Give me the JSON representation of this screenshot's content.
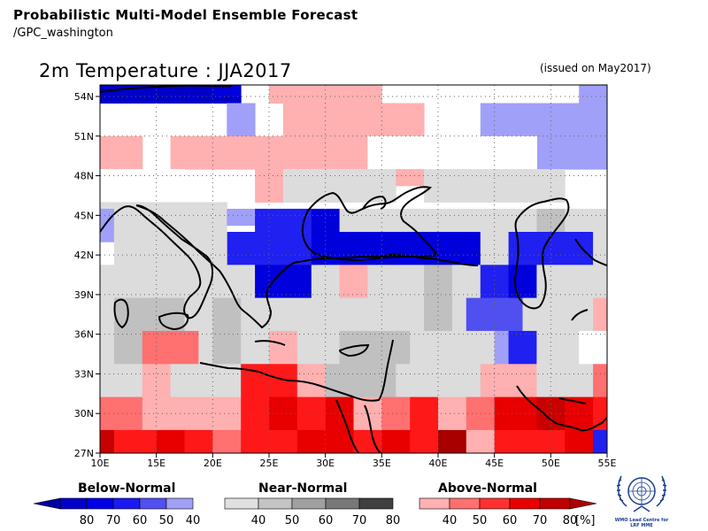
{
  "header": {
    "title": "Probabilistic Multi-Model Ensemble Forecast",
    "source": "/GPC_washington",
    "map_title": "2m Temperature : JJA2017",
    "issued": "(issued on May2017)"
  },
  "map": {
    "lon_labels": [
      "10E",
      "15E",
      "20E",
      "25E",
      "30E",
      "35E",
      "40E",
      "45E",
      "50E",
      "55E"
    ],
    "lat_labels": [
      "54N",
      "51N",
      "48N",
      "45N",
      "42N",
      "39N",
      "36N",
      "33N",
      "30N",
      "27N"
    ],
    "lon_range": [
      10,
      55
    ],
    "lat_range": [
      27,
      55.5
    ],
    "grid_dx": 2.5,
    "grid_dy": 2.5,
    "colors": {
      "blue": [
        "#0000c8",
        "#0000dc",
        "#2020f0",
        "#5050f0",
        "#a0a0f8"
      ],
      "grey": [
        "#dcdcdc",
        "#c0c0c0",
        "#909090"
      ],
      "red": [
        "#ffb0b0",
        "#ff7070",
        "#ff1818",
        "#e80000",
        "#c80000",
        "#a80000"
      ]
    },
    "cells": [
      {
        "lon": 10,
        "lat": 55,
        "w": 10,
        "h": 1,
        "c": "B0"
      },
      {
        "lon": 20,
        "lat": 55,
        "w": 2.5,
        "h": 1,
        "c": "B1"
      },
      {
        "lon": 25,
        "lat": 55,
        "w": 10,
        "h": 1,
        "c": "R0"
      },
      {
        "lon": 52.5,
        "lat": 55,
        "w": 2.5,
        "h": 1,
        "c": "B4"
      },
      {
        "lon": 10,
        "lat": 54,
        "w": 12.5,
        "h": 0.5,
        "c": "B0"
      },
      {
        "lon": 25,
        "lat": 54,
        "w": 10,
        "h": 0.5,
        "c": "R0"
      },
      {
        "lon": 52.5,
        "lat": 54,
        "w": 2.5,
        "h": 0.5,
        "c": "B4"
      },
      {
        "lon": 21.25,
        "lat": 53.5,
        "w": 2.5,
        "h": 2.5,
        "c": "B4"
      },
      {
        "lon": 26.25,
        "lat": 53.5,
        "w": 12.5,
        "h": 2.5,
        "c": "R0"
      },
      {
        "lon": 43.75,
        "lat": 53.5,
        "w": 11.25,
        "h": 2.5,
        "c": "B4"
      },
      {
        "lon": 10,
        "lat": 51,
        "w": 3.75,
        "h": 2.5,
        "c": "R0"
      },
      {
        "lon": 16.25,
        "lat": 51,
        "w": 17.5,
        "h": 2.5,
        "c": "R0"
      },
      {
        "lon": 48.75,
        "lat": 51,
        "w": 6.25,
        "h": 2.5,
        "c": "B4"
      },
      {
        "lon": 33.75,
        "lat": 51,
        "w": 15,
        "h": 2.5,
        "c": "G0z"
      },
      {
        "lon": 10,
        "lat": 48.5,
        "w": 7.5,
        "h": 2.5,
        "c": "G0z"
      },
      {
        "lon": 23.75,
        "lat": 48.5,
        "w": 2.5,
        "h": 2.5,
        "c": "R0"
      },
      {
        "lon": 26.25,
        "lat": 48.5,
        "w": 10,
        "h": 2.5,
        "c": "G0"
      },
      {
        "lon": 36.25,
        "lat": 48.5,
        "w": 2.5,
        "h": 1.25,
        "c": "R0"
      },
      {
        "lon": 38.75,
        "lat": 48.5,
        "w": 10,
        "h": 2.5,
        "c": "G0"
      },
      {
        "lon": 48.75,
        "lat": 48.5,
        "w": 2.5,
        "h": 2.5,
        "c": "G0"
      },
      {
        "lon": 10,
        "lat": 46,
        "w": 11.25,
        "h": 0.5,
        "c": "G0"
      },
      {
        "lon": 10,
        "lat": 45.5,
        "w": 1.25,
        "h": 2.5,
        "c": "B4"
      },
      {
        "lon": 11.25,
        "lat": 45.5,
        "w": 10,
        "h": 2.5,
        "c": "G0"
      },
      {
        "lon": 21.25,
        "lat": 45.5,
        "w": 2.5,
        "h": 1.25,
        "c": "B4"
      },
      {
        "lon": 23.75,
        "lat": 45.5,
        "w": 5,
        "h": 1.75,
        "c": "B2"
      },
      {
        "lon": 28.75,
        "lat": 45.5,
        "w": 2.5,
        "h": 1.75,
        "c": "B1"
      },
      {
        "lon": 31.25,
        "lat": 45.5,
        "w": 17.5,
        "h": 1.75,
        "c": "G0"
      },
      {
        "lon": 48.75,
        "lat": 45.5,
        "w": 2.5,
        "h": 1.75,
        "c": "G1"
      },
      {
        "lon": 51.25,
        "lat": 45.5,
        "w": 3.75,
        "h": 1.75,
        "c": "G0"
      },
      {
        "lon": 21.25,
        "lat": 43.75,
        "w": 2.5,
        "h": 2.5,
        "c": "B2"
      },
      {
        "lon": 23.75,
        "lat": 43.75,
        "w": 5,
        "h": 2.5,
        "c": "B2"
      },
      {
        "lon": 28.75,
        "lat": 43.75,
        "w": 2.5,
        "h": 2.5,
        "c": "B1"
      },
      {
        "lon": 31.25,
        "lat": 43.75,
        "w": 12.5,
        "h": 2.5,
        "c": "B1"
      },
      {
        "lon": 43.75,
        "lat": 43.75,
        "w": 2.5,
        "h": 2.5,
        "c": "G0"
      },
      {
        "lon": 46.25,
        "lat": 43.75,
        "w": 7.5,
        "h": 2.5,
        "c": "B2"
      },
      {
        "lon": 53.75,
        "lat": 43.75,
        "w": 1.25,
        "h": 2.5,
        "c": "G0"
      },
      {
        "lon": 11.25,
        "lat": 43.75,
        "w": 10,
        "h": 2.5,
        "c": "G0"
      },
      {
        "lon": 10,
        "lat": 41.25,
        "w": 13.75,
        "h": 2.5,
        "c": "G0"
      },
      {
        "lon": 23.75,
        "lat": 41.25,
        "w": 5,
        "h": 2.5,
        "c": "B1"
      },
      {
        "lon": 28.75,
        "lat": 41.25,
        "w": 2.5,
        "h": 2.5,
        "c": "G0"
      },
      {
        "lon": 31.25,
        "lat": 41.25,
        "w": 2.5,
        "h": 2.5,
        "c": "R0"
      },
      {
        "lon": 33.75,
        "lat": 41.25,
        "w": 5,
        "h": 2.5,
        "c": "G0"
      },
      {
        "lon": 38.75,
        "lat": 41.25,
        "w": 2.5,
        "h": 2.5,
        "c": "G1"
      },
      {
        "lon": 41.25,
        "lat": 41.25,
        "w": 2.5,
        "h": 2.5,
        "c": "G0"
      },
      {
        "lon": 43.75,
        "lat": 41.25,
        "w": 2.5,
        "h": 2.5,
        "c": "B2"
      },
      {
        "lon": 46.25,
        "lat": 41.25,
        "w": 2.5,
        "h": 2.5,
        "c": "B1"
      },
      {
        "lon": 48.75,
        "lat": 41.25,
        "w": 6.25,
        "h": 2.5,
        "c": "G0"
      },
      {
        "lon": 10,
        "lat": 38.75,
        "w": 1.25,
        "h": 2.5,
        "c": "G0"
      },
      {
        "lon": 11.25,
        "lat": 38.75,
        "w": 6.25,
        "h": 2.5,
        "c": "G1"
      },
      {
        "lon": 17.5,
        "lat": 38.75,
        "w": 2.5,
        "h": 2.5,
        "c": "G0"
      },
      {
        "lon": 20,
        "lat": 38.75,
        "w": 2.5,
        "h": 2.5,
        "c": "G1"
      },
      {
        "lon": 22.5,
        "lat": 38.75,
        "w": 16.25,
        "h": 2.5,
        "c": "G0"
      },
      {
        "lon": 38.75,
        "lat": 38.75,
        "w": 2.5,
        "h": 2.5,
        "c": "G1"
      },
      {
        "lon": 41.25,
        "lat": 38.75,
        "w": 1.25,
        "h": 2.5,
        "c": "G0"
      },
      {
        "lon": 42.5,
        "lat": 38.75,
        "w": 5,
        "h": 2.5,
        "c": "B3"
      },
      {
        "lon": 47.5,
        "lat": 38.75,
        "w": 6.25,
        "h": 2.5,
        "c": "G0"
      },
      {
        "lon": 53.75,
        "lat": 38.75,
        "w": 1.25,
        "h": 2.5,
        "c": "R0"
      },
      {
        "lon": 10,
        "lat": 36.25,
        "w": 1.25,
        "h": 2.5,
        "c": "G0"
      },
      {
        "lon": 11.25,
        "lat": 36.25,
        "w": 2.5,
        "h": 2.5,
        "c": "G1"
      },
      {
        "lon": 13.75,
        "lat": 36.25,
        "w": 5,
        "h": 2.5,
        "c": "R1"
      },
      {
        "lon": 18.75,
        "lat": 36.25,
        "w": 1.25,
        "h": 2.5,
        "c": "G0"
      },
      {
        "lon": 20,
        "lat": 36.25,
        "w": 2.5,
        "h": 2.5,
        "c": "G1"
      },
      {
        "lon": 22.5,
        "lat": 36.25,
        "w": 2.5,
        "h": 2.5,
        "c": "G0"
      },
      {
        "lon": 25,
        "lat": 36.25,
        "w": 2.5,
        "h": 2.5,
        "c": "R0"
      },
      {
        "lon": 27.5,
        "lat": 36.25,
        "w": 3.75,
        "h": 2.5,
        "c": "G0"
      },
      {
        "lon": 31.25,
        "lat": 36.25,
        "w": 6.25,
        "h": 2.5,
        "c": "G1"
      },
      {
        "lon": 37.5,
        "lat": 36.25,
        "w": 7.5,
        "h": 2.5,
        "c": "G0"
      },
      {
        "lon": 45,
        "lat": 36.25,
        "w": 1.25,
        "h": 2.5,
        "c": "B4"
      },
      {
        "lon": 46.25,
        "lat": 36.25,
        "w": 2.5,
        "h": 2.5,
        "c": "B2"
      },
      {
        "lon": 48.75,
        "lat": 36.25,
        "w": 3.75,
        "h": 2.5,
        "c": "G0"
      },
      {
        "lon": 52.5,
        "lat": 36.25,
        "w": 2.5,
        "h": 2.5,
        "c": "G0z"
      },
      {
        "lon": 10,
        "lat": 33.75,
        "w": 3.75,
        "h": 2.5,
        "c": "G0"
      },
      {
        "lon": 13.75,
        "lat": 33.75,
        "w": 2.5,
        "h": 2.5,
        "c": "R0"
      },
      {
        "lon": 16.25,
        "lat": 33.75,
        "w": 6.25,
        "h": 2.5,
        "c": "G0"
      },
      {
        "lon": 22.5,
        "lat": 33.75,
        "w": 5,
        "h": 2.5,
        "c": "R2"
      },
      {
        "lon": 27.5,
        "lat": 33.75,
        "w": 2.5,
        "h": 2.5,
        "c": "R0"
      },
      {
        "lon": 30,
        "lat": 33.75,
        "w": 6.25,
        "h": 2.5,
        "c": "G1"
      },
      {
        "lon": 36.25,
        "lat": 33.75,
        "w": 7.5,
        "h": 2.5,
        "c": "G0"
      },
      {
        "lon": 43.75,
        "lat": 33.75,
        "w": 5,
        "h": 2.5,
        "c": "R0"
      },
      {
        "lon": 48.75,
        "lat": 33.75,
        "w": 5,
        "h": 2.5,
        "c": "G0"
      },
      {
        "lon": 53.75,
        "lat": 33.75,
        "w": 1.25,
        "h": 2.5,
        "c": "R1"
      },
      {
        "lon": 10,
        "lat": 31.25,
        "w": 3.75,
        "h": 2.5,
        "c": "R1"
      },
      {
        "lon": 13.75,
        "lat": 31.25,
        "w": 8.75,
        "h": 2.5,
        "c": "R0"
      },
      {
        "lon": 22.5,
        "lat": 31.25,
        "w": 2.5,
        "h": 2.5,
        "c": "R2"
      },
      {
        "lon": 25,
        "lat": 31.25,
        "w": 2.5,
        "h": 2.5,
        "c": "R3"
      },
      {
        "lon": 27.5,
        "lat": 31.25,
        "w": 2.5,
        "h": 2.5,
        "c": "R2"
      },
      {
        "lon": 30,
        "lat": 31.25,
        "w": 2.5,
        "h": 2.5,
        "c": "R3"
      },
      {
        "lon": 32.5,
        "lat": 31.25,
        "w": 2.5,
        "h": 2.5,
        "c": "R0"
      },
      {
        "lon": 35,
        "lat": 31.25,
        "w": 2.5,
        "h": 2.5,
        "c": "R1"
      },
      {
        "lon": 37.5,
        "lat": 31.25,
        "w": 2.5,
        "h": 2.5,
        "c": "R2"
      },
      {
        "lon": 40,
        "lat": 31.25,
        "w": 2.5,
        "h": 2.5,
        "c": "R0"
      },
      {
        "lon": 42.5,
        "lat": 31.25,
        "w": 2.5,
        "h": 2.5,
        "c": "R1"
      },
      {
        "lon": 45,
        "lat": 31.25,
        "w": 3.75,
        "h": 2.5,
        "c": "R3"
      },
      {
        "lon": 48.75,
        "lat": 31.25,
        "w": 2.5,
        "h": 2.5,
        "c": "R4"
      },
      {
        "lon": 51.25,
        "lat": 31.25,
        "w": 2.5,
        "h": 2.5,
        "c": "R3"
      },
      {
        "lon": 53.75,
        "lat": 31.25,
        "w": 1.25,
        "h": 2.5,
        "c": "R2"
      },
      {
        "lon": 10,
        "lat": 28.75,
        "w": 1.25,
        "h": 1.75,
        "c": "R4"
      },
      {
        "lon": 11.25,
        "lat": 28.75,
        "w": 3.75,
        "h": 1.75,
        "c": "R2"
      },
      {
        "lon": 15,
        "lat": 28.75,
        "w": 2.5,
        "h": 1.75,
        "c": "R3"
      },
      {
        "lon": 17.5,
        "lat": 28.75,
        "w": 2.5,
        "h": 1.75,
        "c": "R2"
      },
      {
        "lon": 20,
        "lat": 28.75,
        "w": 2.5,
        "h": 1.75,
        "c": "R1"
      },
      {
        "lon": 22.5,
        "lat": 28.75,
        "w": 5,
        "h": 1.75,
        "c": "R2"
      },
      {
        "lon": 27.5,
        "lat": 28.75,
        "w": 5,
        "h": 1.75,
        "c": "R3"
      },
      {
        "lon": 32.5,
        "lat": 28.75,
        "w": 2.5,
        "h": 1.75,
        "c": "R2"
      },
      {
        "lon": 35,
        "lat": 28.75,
        "w": 2.5,
        "h": 1.75,
        "c": "R3"
      },
      {
        "lon": 37.5,
        "lat": 28.75,
        "w": 2.5,
        "h": 1.75,
        "c": "R2"
      },
      {
        "lon": 40,
        "lat": 28.75,
        "w": 2.5,
        "h": 1.75,
        "c": "R5"
      },
      {
        "lon": 42.5,
        "lat": 28.75,
        "w": 2.5,
        "h": 1.75,
        "c": "R0"
      },
      {
        "lon": 45,
        "lat": 28.75,
        "w": 2.5,
        "h": 1.75,
        "c": "R2"
      },
      {
        "lon": 47.5,
        "lat": 28.75,
        "w": 3.75,
        "h": 1.75,
        "c": "R2"
      },
      {
        "lon": 51.25,
        "lat": 28.75,
        "w": 2.5,
        "h": 1.75,
        "c": "R3"
      },
      {
        "lon": 53.75,
        "lat": 28.75,
        "w": 1.25,
        "h": 1.75,
        "c": "B2"
      }
    ]
  },
  "legend": {
    "below": {
      "title": "Below-Normal",
      "labels": [
        "80",
        "70",
        "60",
        "50",
        "40"
      ],
      "colors": [
        "#0000c8",
        "#0000e6",
        "#1a1af0",
        "#5050f0",
        "#a0a0f8"
      ]
    },
    "near": {
      "title": "Near-Normal",
      "labels": [
        "40",
        "50",
        "60",
        "70",
        "80"
      ],
      "colors": [
        "#e0e0e0",
        "#c4c4c4",
        "#a0a0a0",
        "#787878",
        "#404040"
      ]
    },
    "above": {
      "title": "Above-Normal",
      "labels": [
        "40",
        "50",
        "60",
        "70",
        "80"
      ],
      "colors": [
        "#ffb0b0",
        "#ff7070",
        "#ff3030",
        "#e80000",
        "#c00000"
      ]
    },
    "unit": "[%]"
  },
  "logo": {
    "line1": "WMO Lead Centre for",
    "line2": "LRF MME"
  }
}
